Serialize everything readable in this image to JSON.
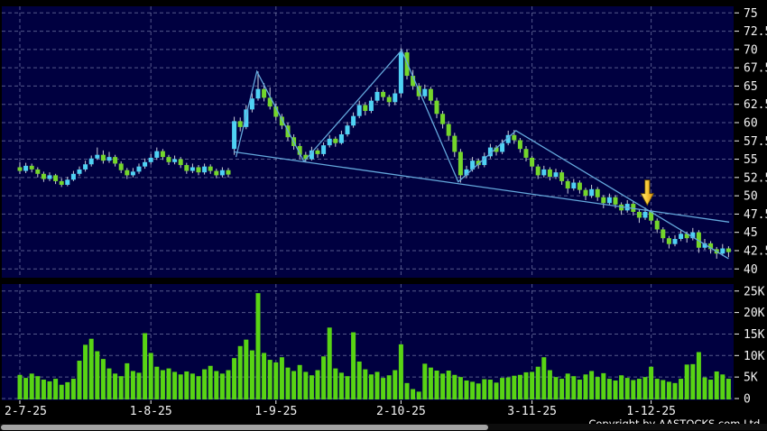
{
  "meta": {
    "copyright": "Copyright by AASTOCKS.com Ltd."
  },
  "chart_data": {
    "type": "candlestick",
    "panels": [
      "price",
      "volume"
    ],
    "x_ticks": [
      {
        "label": "2-7-25",
        "index": 0
      },
      {
        "label": "1-8-25",
        "index": 22
      },
      {
        "label": "1-9-25",
        "index": 43
      },
      {
        "label": "2-10-25",
        "index": 64
      },
      {
        "label": "3-11-25",
        "index": 86
      },
      {
        "label": "1-12-25",
        "index": 106
      }
    ],
    "price_axis": {
      "ticks": [
        75,
        72.5,
        70,
        67.5,
        65,
        62.5,
        60,
        57.5,
        55,
        52.5,
        50,
        47.5,
        45,
        42.5,
        40
      ],
      "min": 38.8,
      "max": 75.9
    },
    "volume_axis": {
      "ticks": [
        {
          "label": "25K",
          "value": 25
        },
        {
          "label": "20K",
          "value": 20
        },
        {
          "label": "15K",
          "value": 15
        },
        {
          "label": "10K",
          "value": 10
        },
        {
          "label": "5K",
          "value": 5
        },
        {
          "label": "0",
          "value": 0
        }
      ],
      "max_k": 27
    },
    "candles": {
      "format": [
        "open",
        "high",
        "low",
        "close",
        "volume_k"
      ],
      "rows": [
        [
          53.9,
          54.6,
          53.0,
          53.4,
          5.5
        ],
        [
          53.4,
          54.5,
          53.1,
          54.1,
          4.8
        ],
        [
          54.1,
          54.4,
          53.2,
          53.6,
          5.8
        ],
        [
          53.6,
          53.9,
          52.5,
          53.0,
          5.2
        ],
        [
          53.0,
          53.3,
          51.9,
          52.3,
          4.4
        ],
        [
          52.3,
          53.2,
          52.0,
          52.8,
          4.0
        ],
        [
          52.8,
          53.0,
          51.6,
          52.0,
          4.6
        ],
        [
          52.0,
          52.4,
          51.2,
          51.5,
          3.2
        ],
        [
          51.5,
          52.6,
          51.3,
          52.2,
          3.8
        ],
        [
          52.2,
          53.4,
          52.0,
          53.0,
          4.6
        ],
        [
          53.0,
          54.0,
          52.7,
          53.6,
          8.8
        ],
        [
          53.6,
          54.8,
          53.3,
          54.3,
          12.5
        ],
        [
          54.3,
          55.5,
          54.0,
          55.1,
          13.9
        ],
        [
          55.1,
          56.6,
          54.9,
          55.6,
          11.0
        ],
        [
          55.6,
          56.2,
          54.4,
          54.8,
          9.2
        ],
        [
          54.8,
          56.0,
          54.5,
          55.3,
          7.0
        ],
        [
          55.3,
          55.6,
          54.0,
          54.4,
          5.8
        ],
        [
          54.4,
          54.7,
          53.1,
          53.5,
          5.2
        ],
        [
          53.5,
          53.8,
          52.3,
          52.8,
          8.2
        ],
        [
          52.8,
          53.8,
          52.5,
          53.3,
          6.4
        ],
        [
          53.3,
          54.4,
          53.0,
          54.0,
          6.0
        ],
        [
          54.0,
          55.1,
          53.7,
          54.6,
          15.2
        ],
        [
          54.6,
          55.7,
          54.3,
          55.2,
          10.6
        ],
        [
          55.2,
          56.6,
          54.9,
          56.1,
          7.4
        ],
        [
          56.1,
          56.4,
          54.9,
          55.3,
          6.6
        ],
        [
          55.3,
          55.6,
          54.2,
          54.6,
          7.0
        ],
        [
          54.6,
          55.5,
          54.3,
          55.0,
          6.2
        ],
        [
          55.0,
          55.3,
          53.8,
          54.2,
          5.6
        ],
        [
          54.2,
          54.5,
          53.0,
          53.4,
          6.3
        ],
        [
          53.4,
          54.4,
          53.1,
          53.9,
          5.8
        ],
        [
          53.9,
          54.2,
          52.8,
          53.2,
          5.2
        ],
        [
          53.2,
          54.4,
          52.9,
          54.0,
          6.8
        ],
        [
          54.0,
          54.3,
          53.0,
          53.4,
          7.6
        ],
        [
          53.4,
          53.7,
          52.4,
          52.8,
          6.4
        ],
        [
          52.8,
          53.9,
          52.5,
          53.5,
          5.8
        ],
        [
          53.5,
          53.8,
          52.5,
          52.9,
          6.6
        ],
        [
          56.4,
          60.8,
          55.6,
          60.2,
          9.4
        ],
        [
          60.2,
          60.7,
          58.8,
          59.4,
          12.2
        ],
        [
          59.4,
          62.4,
          59.1,
          61.8,
          13.7
        ],
        [
          61.8,
          64.0,
          61.4,
          63.3,
          11.2
        ],
        [
          63.3,
          67.0,
          63.0,
          64.6,
          24.5
        ],
        [
          64.6,
          65.4,
          62.9,
          63.4,
          10.6
        ],
        [
          63.4,
          64.8,
          61.8,
          62.2,
          9.0
        ],
        [
          62.2,
          62.6,
          60.3,
          60.8,
          8.4
        ],
        [
          60.8,
          61.2,
          59.1,
          59.6,
          9.6
        ],
        [
          59.6,
          60.0,
          57.5,
          58.0,
          7.2
        ],
        [
          58.0,
          58.4,
          56.3,
          56.8,
          6.4
        ],
        [
          56.8,
          57.2,
          55.0,
          55.6,
          7.8
        ],
        [
          55.6,
          56.0,
          54.6,
          55.0,
          6.2
        ],
        [
          55.0,
          56.7,
          54.8,
          56.2,
          5.4
        ],
        [
          56.2,
          56.5,
          55.2,
          55.7,
          6.6
        ],
        [
          55.7,
          57.3,
          55.4,
          56.9,
          9.8
        ],
        [
          56.9,
          58.3,
          56.6,
          57.8,
          16.5
        ],
        [
          57.8,
          58.1,
          56.7,
          57.2,
          7.0
        ],
        [
          57.2,
          58.9,
          57.0,
          58.4,
          6.0
        ],
        [
          58.4,
          60.1,
          58.1,
          59.6,
          5.2
        ],
        [
          59.6,
          61.4,
          59.3,
          60.9,
          15.4
        ],
        [
          60.9,
          63.0,
          60.6,
          62.4,
          8.6
        ],
        [
          62.4,
          62.8,
          61.0,
          61.6,
          6.8
        ],
        [
          61.6,
          63.5,
          61.3,
          63.0,
          5.6
        ],
        [
          63.0,
          64.8,
          62.7,
          64.2,
          6.2
        ],
        [
          64.2,
          64.5,
          63.0,
          63.5,
          4.8
        ],
        [
          63.5,
          63.8,
          62.2,
          62.8,
          5.4
        ],
        [
          62.8,
          64.6,
          62.4,
          64.0,
          6.6
        ],
        [
          64.0,
          70.2,
          63.5,
          69.6,
          12.6
        ],
        [
          69.6,
          70.0,
          65.9,
          66.4,
          3.6
        ],
        [
          66.4,
          67.2,
          64.5,
          65.0,
          2.2
        ],
        [
          65.0,
          65.4,
          63.1,
          63.6,
          1.6
        ],
        [
          63.6,
          65.2,
          63.3,
          64.6,
          8.1
        ],
        [
          64.6,
          64.9,
          62.5,
          63.0,
          7.2
        ],
        [
          63.0,
          63.4,
          60.6,
          61.2,
          6.5
        ],
        [
          61.2,
          61.6,
          59.2,
          59.8,
          5.8
        ],
        [
          59.8,
          60.2,
          57.5,
          58.2,
          6.5
        ],
        [
          58.2,
          58.6,
          55.3,
          56.0,
          5.5
        ],
        [
          56.0,
          56.4,
          51.8,
          52.8,
          5.0
        ],
        [
          52.8,
          54.1,
          52.4,
          53.6,
          4.2
        ],
        [
          53.6,
          55.3,
          53.3,
          54.8,
          3.9
        ],
        [
          54.8,
          55.1,
          53.7,
          54.2,
          3.5
        ],
        [
          54.2,
          55.9,
          53.9,
          55.4,
          4.5
        ],
        [
          55.4,
          57.1,
          55.1,
          56.6,
          4.4
        ],
        [
          56.6,
          56.9,
          55.5,
          56.0,
          3.7
        ],
        [
          56.0,
          57.7,
          55.7,
          57.2,
          4.8
        ],
        [
          57.2,
          58.9,
          56.9,
          58.3,
          4.9
        ],
        [
          58.3,
          59.0,
          57.1,
          57.6,
          5.3
        ],
        [
          57.6,
          57.9,
          55.9,
          56.4,
          5.5
        ],
        [
          56.4,
          56.8,
          54.7,
          55.2,
          6.1
        ],
        [
          55.2,
          55.5,
          53.4,
          54.0,
          6.2
        ],
        [
          54.0,
          54.3,
          52.3,
          52.8,
          7.4
        ],
        [
          52.8,
          54.1,
          52.5,
          53.6,
          9.6
        ],
        [
          53.6,
          53.9,
          52.1,
          52.6,
          6.6
        ],
        [
          52.6,
          53.7,
          52.3,
          53.2,
          5.0
        ],
        [
          53.2,
          53.5,
          51.5,
          52.0,
          4.6
        ],
        [
          52.0,
          52.3,
          50.3,
          51.0,
          5.8
        ],
        [
          51.0,
          52.3,
          50.7,
          51.8,
          5.2
        ],
        [
          51.8,
          52.1,
          50.3,
          50.8,
          4.4
        ],
        [
          50.8,
          51.1,
          49.4,
          50.0,
          5.6
        ],
        [
          50.0,
          51.5,
          49.7,
          50.9,
          6.4
        ],
        [
          50.9,
          51.2,
          49.3,
          49.8,
          5.0
        ],
        [
          49.8,
          50.1,
          48.3,
          49.0,
          5.9
        ],
        [
          49.0,
          50.3,
          48.7,
          49.8,
          4.6
        ],
        [
          49.8,
          50.1,
          48.3,
          48.8,
          4.2
        ],
        [
          48.8,
          49.1,
          47.4,
          48.0,
          5.4
        ],
        [
          48.0,
          49.4,
          47.7,
          48.9,
          4.8
        ],
        [
          48.9,
          49.2,
          47.3,
          47.8,
          4.3
        ],
        [
          47.8,
          48.1,
          46.3,
          47.0,
          4.6
        ],
        [
          47.0,
          48.4,
          46.7,
          47.8,
          5.0
        ],
        [
          47.8,
          48.1,
          46.1,
          46.6,
          7.4
        ],
        [
          46.6,
          46.9,
          44.9,
          45.4,
          4.6
        ],
        [
          45.4,
          45.7,
          43.6,
          44.2,
          4.3
        ],
        [
          44.2,
          44.5,
          42.8,
          43.4,
          3.9
        ],
        [
          43.4,
          44.6,
          43.1,
          44.1,
          3.6
        ],
        [
          44.1,
          45.4,
          43.8,
          44.8,
          4.6
        ],
        [
          44.8,
          45.1,
          43.6,
          44.2,
          7.9
        ],
        [
          44.2,
          45.6,
          43.9,
          45.0,
          8.0
        ],
        [
          45.0,
          45.3,
          42.2,
          42.9,
          10.8
        ],
        [
          42.9,
          44.1,
          42.6,
          43.5,
          4.9
        ],
        [
          43.5,
          43.8,
          42.1,
          42.7,
          4.4
        ],
        [
          42.7,
          43.0,
          41.4,
          42.1,
          6.3
        ],
        [
          42.1,
          43.4,
          41.8,
          42.8,
          5.6
        ],
        [
          42.8,
          43.1,
          41.6,
          42.3,
          4.6
        ]
      ]
    },
    "trendlines": [
      {
        "name": "descending-support-line",
        "points_index_price": [
          [
            35.9,
            56.0
          ],
          [
            119.1,
            46.4
          ]
        ]
      },
      {
        "name": "zigzag-pattern-line",
        "points_index_price": [
          [
            36.3,
            55.3
          ],
          [
            39.8,
            67.0
          ],
          [
            47.7,
            54.7
          ],
          [
            64.1,
            69.9
          ],
          [
            73.6,
            51.9
          ],
          [
            83.3,
            58.9
          ],
          [
            119.0,
            41.4
          ]
        ]
      }
    ],
    "arrow_annotation": {
      "index": 105.35,
      "tip_price": 48.7,
      "color": "#F5C52E"
    },
    "colors": {
      "background": "#000000",
      "panel": "#000040",
      "grid": "#9AA2C8",
      "up_candle": "#4FD2F4",
      "down_candle": "#74D62B",
      "volume_bar": "#58D414",
      "wick": "#C9CCD9",
      "trendline": "#64A8DC",
      "axis_text": "#F2F2F2"
    }
  }
}
